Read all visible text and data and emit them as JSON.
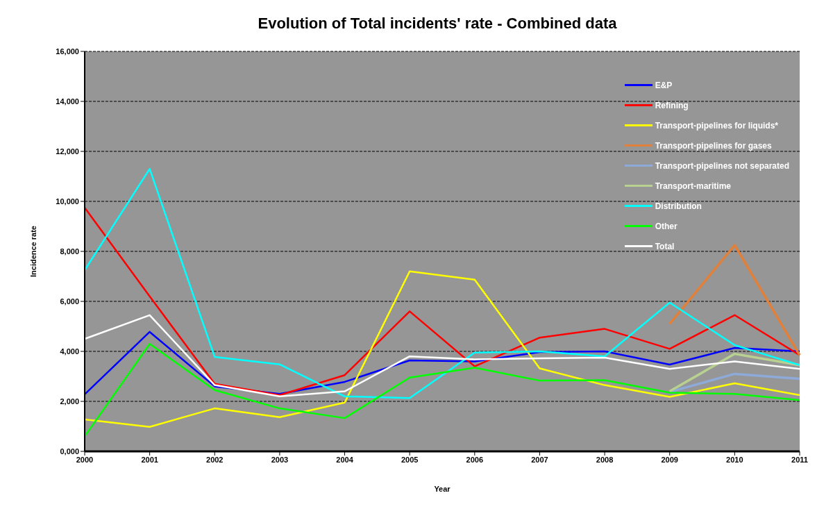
{
  "chart_data": {
    "type": "line",
    "title": "Evolution of Total incidents' rate - Combined data",
    "xlabel": "Year",
    "ylabel": "Incidence rate",
    "categories": [
      "2000",
      "2001",
      "2002",
      "2003",
      "2004",
      "2005",
      "2006",
      "2007",
      "2008",
      "2009",
      "2010",
      "2011"
    ],
    "ylim": [
      0,
      16000
    ],
    "yticks": [
      {
        "value": 0,
        "label": "0,000"
      },
      {
        "value": 2000,
        "label": "2,000"
      },
      {
        "value": 4000,
        "label": "4,000"
      },
      {
        "value": 6000,
        "label": "6,000"
      },
      {
        "value": 8000,
        "label": "8,000"
      },
      {
        "value": 10000,
        "label": "10,000"
      },
      {
        "value": 12000,
        "label": "12,000"
      },
      {
        "value": 14000,
        "label": "14,000"
      },
      {
        "value": 16000,
        "label": "16,000"
      }
    ],
    "grid": "y",
    "legend": "top right",
    "marker": "none",
    "line_style": "solid",
    "series": [
      {
        "name": "E&P",
        "color": "#0000ff",
        "values": [
          2280,
          4780,
          2600,
          2300,
          2780,
          3640,
          3600,
          3970,
          4000,
          3470,
          4140,
          4000
        ]
      },
      {
        "name": "Refining",
        "color": "#ff0000",
        "values": [
          9750,
          6200,
          2700,
          2250,
          3050,
          5600,
          3400,
          4550,
          4900,
          4100,
          5450,
          3850
        ]
      },
      {
        "name": "Transport-pipelines for liquids*",
        "color": "#ffff00",
        "values": [
          1280,
          980,
          1720,
          1370,
          1950,
          7200,
          6870,
          3320,
          2650,
          2180,
          2720,
          2250
        ]
      },
      {
        "name": "Transport-pipelines for gases",
        "color": "#e0803a",
        "values": [
          null,
          null,
          null,
          null,
          null,
          null,
          null,
          null,
          null,
          5100,
          8250,
          3850
        ]
      },
      {
        "name": "Transport-pipelines not separated",
        "color": "#8eaad8",
        "values": [
          null,
          null,
          null,
          null,
          null,
          null,
          null,
          null,
          null,
          2380,
          3100,
          2900
        ]
      },
      {
        "name": "Transport-maritime",
        "color": "#b8d090",
        "values": [
          null,
          null,
          null,
          null,
          null,
          null,
          null,
          null,
          null,
          2400,
          3900,
          3450
        ]
      },
      {
        "name": "Distribution",
        "color": "#00ffff",
        "values": [
          7250,
          11300,
          3780,
          3480,
          2200,
          2130,
          3950,
          4000,
          3800,
          5950,
          4250,
          3450
        ]
      },
      {
        "name": "Other",
        "color": "#00ff00",
        "values": [
          600,
          4300,
          2450,
          1720,
          1330,
          2950,
          3350,
          2830,
          2850,
          2350,
          2300,
          2050
        ]
      },
      {
        "name": "Total",
        "color": "#ffffff",
        "values": [
          4500,
          5450,
          2650,
          2200,
          2400,
          3800,
          3680,
          3720,
          3750,
          3300,
          3600,
          3300
        ]
      }
    ]
  }
}
